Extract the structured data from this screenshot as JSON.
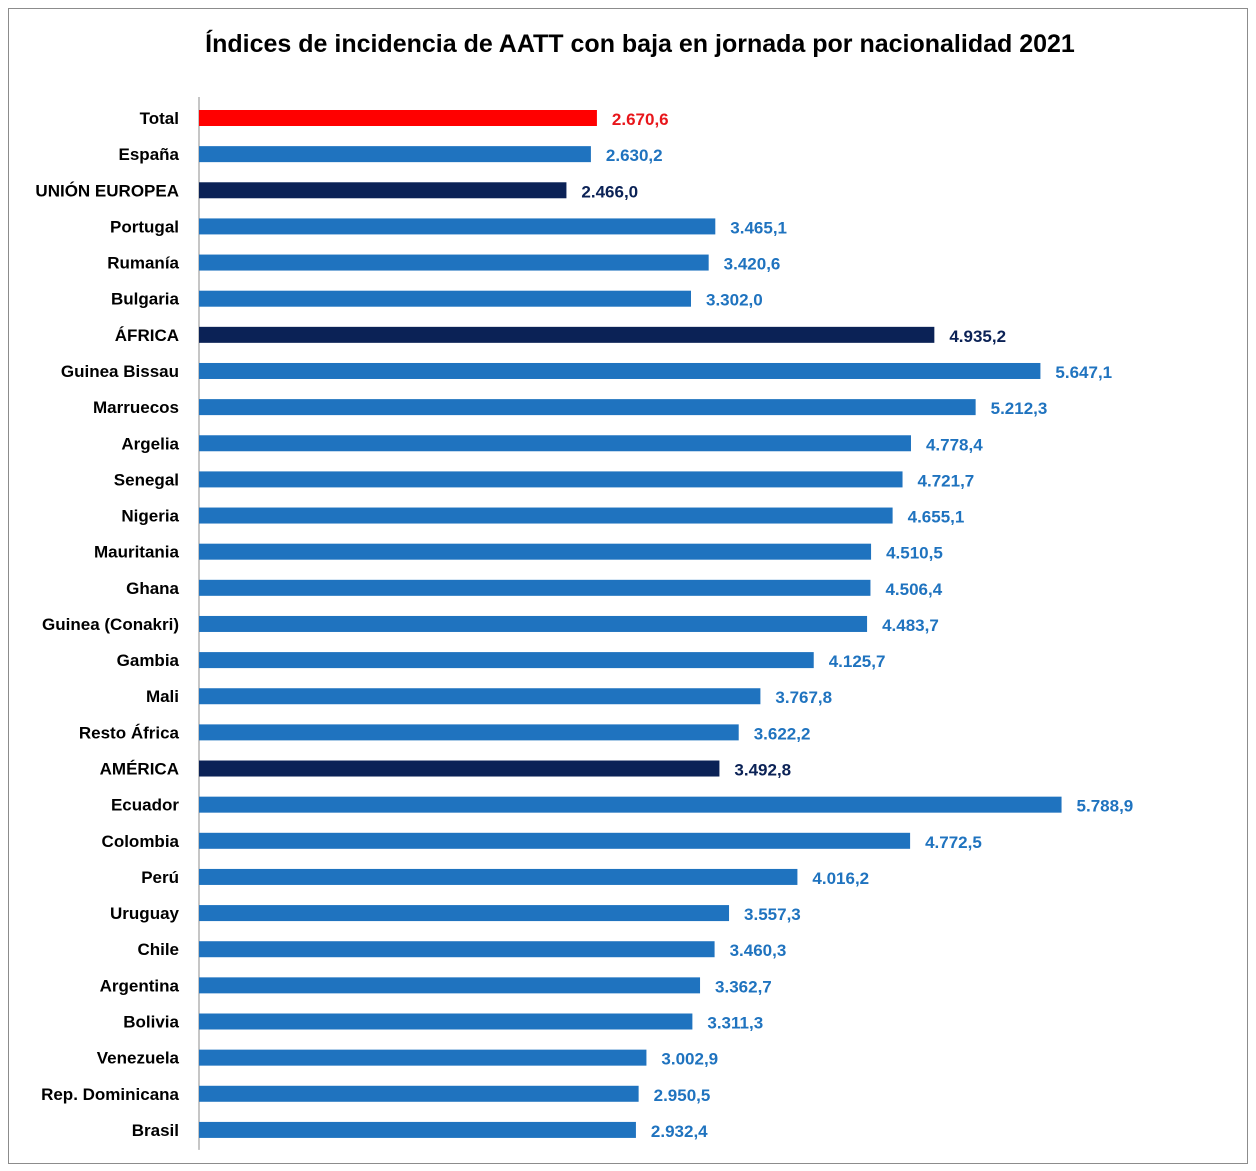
{
  "chart_data": {
    "type": "bar",
    "orientation": "horizontal",
    "title": "Índices de incidencia de AATT con baja en jornada por nacionalidad 2021",
    "xlabel": "",
    "ylabel": "",
    "grid": false,
    "legend": "none",
    "categories": [
      "Total",
      "España",
      "UNIÓN EUROPEA",
      "Portugal",
      "Rumanía",
      "Bulgaria",
      "ÁFRICA",
      "Guinea Bissau",
      "Marruecos",
      "Argelia",
      "Senegal",
      "Nigeria",
      "Mauritania",
      "Ghana",
      "Guinea (Conakri)",
      "Gambia",
      "Mali",
      "Resto África",
      "AMÉRICA",
      "Ecuador",
      "Colombia",
      "Perú",
      "Uruguay",
      "Chile",
      "Argentina",
      "Bolivia",
      "Venezuela",
      "Rep. Dominicana",
      "Brasil"
    ],
    "values": [
      2670.6,
      2630.2,
      2466.0,
      3465.1,
      3420.6,
      3302.0,
      4935.2,
      5647.1,
      5212.3,
      4778.4,
      4721.7,
      4655.1,
      4510.5,
      4506.4,
      4483.7,
      4125.7,
      3767.8,
      3622.2,
      3492.8,
      5788.9,
      4772.5,
      4016.2,
      3557.3,
      3460.3,
      3362.7,
      3311.3,
      3002.9,
      2950.5,
      2932.4
    ],
    "value_labels": [
      "2.670,6",
      "2.630,2",
      "2.466,0",
      "3.465,1",
      "3.420,6",
      "3.302,0",
      "4.935,2",
      "5.647,1",
      "5.212,3",
      "4.778,4",
      "4.721,7",
      "4.655,1",
      "4.510,5",
      "4.506,4",
      "4.483,7",
      "4.125,7",
      "3.767,8",
      "3.622,2",
      "3.492,8",
      "5.788,9",
      "4.772,5",
      "4.016,2",
      "3.557,3",
      "3.460,3",
      "3.362,7",
      "3.311,3",
      "3.002,9",
      "2.950,5",
      "2.932,4"
    ],
    "bar_kind": [
      "total",
      "country",
      "group",
      "country",
      "country",
      "country",
      "group",
      "country",
      "country",
      "country",
      "country",
      "country",
      "country",
      "country",
      "country",
      "country",
      "country",
      "country",
      "group",
      "country",
      "country",
      "country",
      "country",
      "country",
      "country",
      "country",
      "country",
      "country",
      "country"
    ],
    "colors": {
      "total": "#ff0000",
      "country": "#1f73bf",
      "group": "#0b2256",
      "total_label": "#e8161b",
      "country_label": "#1f73bf",
      "group_label": "#0b2256"
    }
  }
}
